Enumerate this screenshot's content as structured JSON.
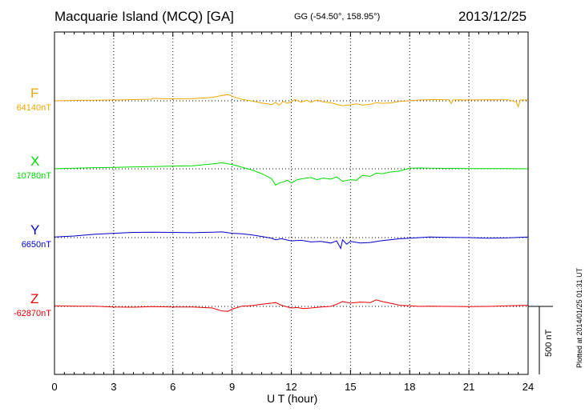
{
  "header": {
    "title": "Macquarie Island (MCQ)  [GA]",
    "coords": "GG (-54.50°, 158.95°)",
    "date": "2013/12/25"
  },
  "plotted_note": "Plotted at 2014/01/25 01:31  UT",
  "scale_bar_label": "500 nT",
  "chart_data": {
    "type": "line",
    "title": "Macquarie Island (MCQ)  [GA]",
    "xlabel": "U T (hour)",
    "ylabel": "",
    "xlim": [
      0,
      24
    ],
    "xticks": [
      0,
      3,
      6,
      9,
      12,
      15,
      18,
      21,
      24
    ],
    "grid": true,
    "scale_bar_nT": 500,
    "series": [
      {
        "name": "F",
        "baseline_label": "64140nT",
        "color": "#f0a800",
        "x": [
          0,
          1,
          2,
          3,
          4,
          4.9,
          5,
          5.5,
          6,
          7,
          8,
          8.5,
          8.8,
          9,
          9.5,
          10,
          10.5,
          10.8,
          11,
          11.2,
          11.4,
          11.6,
          11.8,
          12,
          12.2,
          12.5,
          12.8,
          13,
          13.3,
          13.6,
          14,
          14.3,
          14.6,
          15,
          15.3,
          15.6,
          16,
          16.3,
          16.6,
          17,
          17.5,
          18,
          18.5,
          19,
          19.5,
          20,
          20.1,
          20.2,
          20.5,
          21,
          22,
          23,
          23.4,
          23.5,
          23.6,
          24
        ],
        "values": [
          0,
          8,
          12,
          15,
          22,
          30,
          45,
          38,
          35,
          40,
          62,
          100,
          115,
          85,
          25,
          -5,
          -40,
          -55,
          -70,
          -30,
          -80,
          -10,
          -45,
          -15,
          20,
          -25,
          10,
          -30,
          15,
          -20,
          -35,
          -65,
          -90,
          -75,
          -55,
          -80,
          -65,
          -35,
          -45,
          -40,
          -10,
          0,
          15,
          20,
          22,
          18,
          -50,
          15,
          18,
          15,
          20,
          18,
          -20,
          -110,
          15,
          15
        ]
      },
      {
        "name": "X",
        "baseline_label": "10780nT",
        "color": "#00dd00",
        "x": [
          0,
          1,
          2,
          3,
          4,
          5,
          6,
          7,
          8,
          8.5,
          9,
          9.5,
          10,
          10.5,
          11,
          11.2,
          11.4,
          11.6,
          11.8,
          12,
          12.3,
          12.6,
          13,
          13.3,
          13.6,
          14,
          14.3,
          14.6,
          15,
          15.3,
          15.6,
          16,
          16.3,
          16.6,
          17,
          17.5,
          18,
          18.5,
          19,
          20,
          21,
          22,
          23,
          24
        ],
        "values": [
          0,
          10,
          20,
          25,
          35,
          40,
          50,
          55,
          90,
          110,
          80,
          30,
          -20,
          -90,
          -180,
          -300,
          -260,
          -240,
          -210,
          -260,
          -200,
          -180,
          -160,
          -200,
          -170,
          -190,
          -150,
          -230,
          -200,
          -210,
          -120,
          -140,
          -80,
          -90,
          -60,
          -40,
          10,
          15,
          12,
          8,
          5,
          5,
          3,
          0
        ]
      },
      {
        "name": "Y",
        "baseline_label": "6650nT",
        "color": "#0000cc",
        "x": [
          0,
          1,
          2,
          3,
          4,
          5,
          6,
          7,
          8,
          8.5,
          9,
          9.5,
          10,
          10.5,
          11,
          11.2,
          11.5,
          12,
          12.5,
          13,
          13.5,
          14,
          14.3,
          14.5,
          14.6,
          14.8,
          15,
          15.5,
          16,
          16.5,
          17,
          17.5,
          18,
          19,
          20,
          21,
          22,
          23,
          24
        ],
        "values": [
          10,
          30,
          60,
          80,
          95,
          100,
          95,
          90,
          100,
          105,
          80,
          70,
          50,
          20,
          -10,
          -40,
          -20,
          -60,
          -50,
          -80,
          -70,
          -100,
          -60,
          -200,
          -40,
          -120,
          -70,
          -100,
          -90,
          -60,
          -40,
          -20,
          -10,
          10,
          5,
          0,
          -10,
          -5,
          10
        ]
      },
      {
        "name": "Z",
        "baseline_label": "-62870nT",
        "color": "#ee0000",
        "x": [
          0,
          1,
          2,
          3,
          4,
          5,
          6,
          7,
          8,
          8.5,
          8.8,
          9,
          9.5,
          10,
          10.5,
          11,
          11.2,
          11.5,
          12,
          12.3,
          12.6,
          13,
          13.5,
          14,
          14.3,
          14.6,
          15,
          15.5,
          16,
          16.3,
          16.6,
          17,
          17.5,
          18,
          18.5,
          19,
          20,
          21,
          22,
          23,
          24
        ],
        "values": [
          10,
          5,
          5,
          -10,
          -15,
          -5,
          -10,
          -10,
          -30,
          -85,
          -90,
          -50,
          5,
          15,
          40,
          60,
          70,
          20,
          -30,
          -20,
          -40,
          -30,
          -10,
          0,
          40,
          90,
          60,
          80,
          70,
          120,
          90,
          60,
          20,
          10,
          0,
          5,
          0,
          -5,
          0,
          10,
          20
        ]
      }
    ]
  }
}
